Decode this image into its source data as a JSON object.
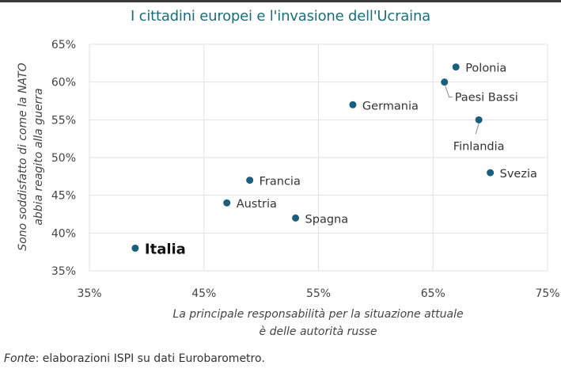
{
  "title": "I cittadini europei e l'invasione dell'Ucraina",
  "source": {
    "prefix": "Fonte",
    "text": ": elaborazioni ISPI su dati Eurobarometro."
  },
  "colors": {
    "title": "#1a6e78",
    "point": "#1b5f7e",
    "grid": "#e2e2e2"
  },
  "chart_data": {
    "type": "scatter",
    "title": "I cittadini europei e l'invasione dell'Ucraina",
    "xlabel": [
      "La principale responsabilità per la situazione attuale",
      "è delle autorità russe"
    ],
    "ylabel": [
      "Sono soddisfatto di come la NATO",
      "abbia reagito alla guerra"
    ],
    "xlim": [
      35,
      75
    ],
    "ylim": [
      35,
      65
    ],
    "xticks": [
      35,
      45,
      55,
      65,
      75
    ],
    "yticks": [
      35,
      40,
      45,
      50,
      55,
      60,
      65
    ],
    "xtick_labels": [
      "35%",
      "45%",
      "55%",
      "65%",
      "75%"
    ],
    "ytick_labels": [
      "35%",
      "40%",
      "45%",
      "50%",
      "55%",
      "60%",
      "65%"
    ],
    "grid": true,
    "points": [
      {
        "name": "Polonia",
        "x": 67,
        "y": 62,
        "label_pos": "right"
      },
      {
        "name": "Paesi Bassi",
        "x": 66,
        "y": 60,
        "label_pos": "below-right-leader"
      },
      {
        "name": "Germania",
        "x": 58,
        "y": 57,
        "label_pos": "right"
      },
      {
        "name": "Finlandia",
        "x": 69,
        "y": 55,
        "label_pos": "below-leader"
      },
      {
        "name": "Svezia",
        "x": 70,
        "y": 48,
        "label_pos": "right"
      },
      {
        "name": "Francia",
        "x": 49,
        "y": 47,
        "label_pos": "right"
      },
      {
        "name": "Austria",
        "x": 47,
        "y": 44,
        "label_pos": "right"
      },
      {
        "name": "Spagna",
        "x": 53,
        "y": 42,
        "label_pos": "right"
      },
      {
        "name": "Italia",
        "x": 39,
        "y": 38,
        "label_pos": "right",
        "highlight": true
      }
    ]
  }
}
